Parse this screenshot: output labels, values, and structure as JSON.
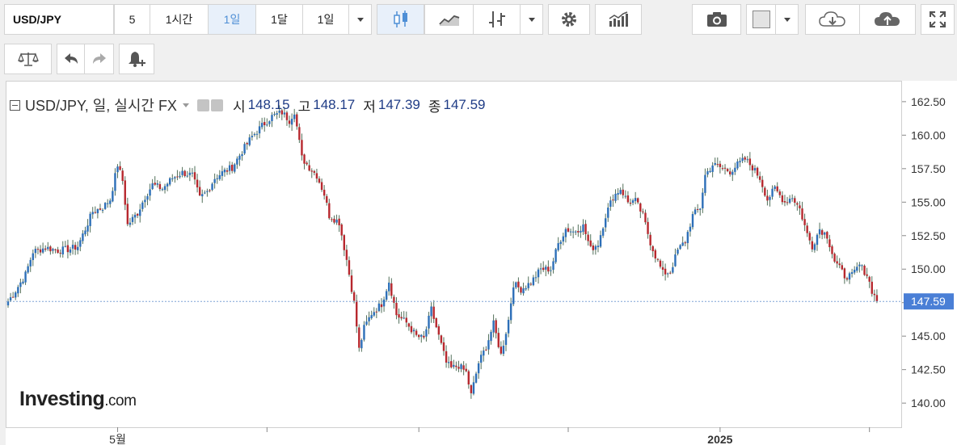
{
  "toolbar": {
    "symbol": "USD/JPY",
    "intervals": [
      "5",
      "1시간",
      "1일",
      "1달",
      "1일"
    ],
    "selected_interval_index": 2
  },
  "legend": {
    "title": "USD/JPY, 일, 실시간 FX",
    "open_label": "시",
    "open_value": "148.15",
    "high_label": "고",
    "high_value": "148.17",
    "low_label": "저",
    "low_value": "147.39",
    "close_label": "종",
    "close_value": "147.59"
  },
  "logo": {
    "main": "Investing",
    "suffix": ".com"
  },
  "colors": {
    "up": "#2d6fb8",
    "down": "#b7282e",
    "last_price_line": "#7ea3d6",
    "last_price_badge": "#4a7fd6",
    "accent": "#4e8fd6"
  },
  "chart_data": {
    "type": "candlestick",
    "title": "USD/JPY, 일, 실시간 FX",
    "xlabel": "",
    "ylabel": "",
    "ylim": [
      138.2,
      164.0
    ],
    "y_ticks": [
      162.5,
      160.0,
      157.5,
      155.0,
      152.5,
      150.0,
      147.5,
      145.0,
      142.5,
      140.0
    ],
    "y_tick_labels": [
      "162.50",
      "160.00",
      "157.50",
      "155.00",
      "152.50",
      "150.00",
      "147.50",
      "145.00",
      "142.50",
      "140.00"
    ],
    "x_tick_labels": [
      {
        "index": 44,
        "label": "5월"
      },
      {
        "index": 104,
        "label": ""
      },
      {
        "index": 165,
        "label": ""
      },
      {
        "index": 225,
        "label": ""
      },
      {
        "index": 286,
        "label": "2025"
      },
      {
        "index": 346,
        "label": ""
      }
    ],
    "last_price": 147.59,
    "last_price_label": "147.59",
    "num_candles": 350,
    "close_path": [
      [
        0,
        147.6
      ],
      [
        3,
        148.4
      ],
      [
        7,
        149.6
      ],
      [
        10,
        151.3
      ],
      [
        15,
        151.6
      ],
      [
        20,
        151.4
      ],
      [
        25,
        151.5
      ],
      [
        28,
        151.7
      ],
      [
        31,
        153.0
      ],
      [
        34,
        154.3
      ],
      [
        38,
        154.6
      ],
      [
        41,
        155.2
      ],
      [
        44,
        157.8
      ],
      [
        46,
        156.6
      ],
      [
        48,
        153.3
      ],
      [
        52,
        154.2
      ],
      [
        55,
        155.4
      ],
      [
        58,
        156.3
      ],
      [
        62,
        156.0
      ],
      [
        66,
        156.8
      ],
      [
        70,
        157.2
      ],
      [
        74,
        157.0
      ],
      [
        77,
        155.3
      ],
      [
        80,
        155.8
      ],
      [
        83,
        156.8
      ],
      [
        86,
        157.2
      ],
      [
        90,
        157.6
      ],
      [
        94,
        158.8
      ],
      [
        98,
        159.9
      ],
      [
        102,
        160.7
      ],
      [
        106,
        161.4
      ],
      [
        110,
        161.7
      ],
      [
        113,
        161.1
      ],
      [
        115,
        161.8
      ],
      [
        118,
        158.3
      ],
      [
        121,
        157.6
      ],
      [
        124,
        157.0
      ],
      [
        127,
        155.6
      ],
      [
        129,
        154.0
      ],
      [
        133,
        153.5
      ],
      [
        136,
        150.7
      ],
      [
        139,
        147.5
      ],
      [
        141,
        144.0
      ],
      [
        143,
        145.6
      ],
      [
        146,
        146.7
      ],
      [
        150,
        147.4
      ],
      [
        153,
        149.1
      ],
      [
        156,
        146.6
      ],
      [
        160,
        146.0
      ],
      [
        164,
        145.0
      ],
      [
        167,
        144.8
      ],
      [
        170,
        147.0
      ],
      [
        173,
        145.0
      ],
      [
        176,
        143.0
      ],
      [
        178,
        142.6
      ],
      [
        181,
        142.8
      ],
      [
        184,
        142.3
      ],
      [
        186,
        140.6
      ],
      [
        189,
        143.0
      ],
      [
        192,
        144.2
      ],
      [
        195,
        145.9
      ],
      [
        198,
        143.6
      ],
      [
        201,
        146.2
      ],
      [
        203,
        148.9
      ],
      [
        206,
        148.5
      ],
      [
        210,
        149.0
      ],
      [
        214,
        150.0
      ],
      [
        218,
        150.0
      ],
      [
        221,
        151.9
      ],
      [
        224,
        153.0
      ],
      [
        227,
        152.8
      ],
      [
        231,
        153.2
      ],
      [
        234,
        151.5
      ],
      [
        237,
        151.9
      ],
      [
        240,
        154.0
      ],
      [
        243,
        155.4
      ],
      [
        246,
        156.0
      ],
      [
        249,
        155.0
      ],
      [
        252,
        155.1
      ],
      [
        255,
        154.0
      ],
      [
        258,
        152.0
      ],
      [
        260,
        151.0
      ],
      [
        263,
        149.7
      ],
      [
        266,
        149.8
      ],
      [
        269,
        151.4
      ],
      [
        272,
        152.1
      ],
      [
        275,
        154.0
      ],
      [
        278,
        154.6
      ],
      [
        280,
        157.0
      ],
      [
        283,
        157.8
      ],
      [
        286,
        157.6
      ],
      [
        290,
        157.3
      ],
      [
        293,
        157.8
      ],
      [
        296,
        158.2
      ],
      [
        299,
        157.6
      ],
      [
        302,
        156.8
      ],
      [
        305,
        155.2
      ],
      [
        308,
        156.0
      ],
      [
        312,
        155.0
      ],
      [
        315,
        155.4
      ],
      [
        318,
        154.5
      ],
      [
        321,
        152.6
      ],
      [
        323,
        151.7
      ],
      [
        326,
        153.0
      ],
      [
        329,
        152.5
      ],
      [
        332,
        150.6
      ],
      [
        336,
        149.5
      ],
      [
        339,
        149.5
      ],
      [
        342,
        150.3
      ],
      [
        345,
        149.6
      ],
      [
        347,
        148.4
      ],
      [
        349,
        147.59
      ]
    ]
  }
}
